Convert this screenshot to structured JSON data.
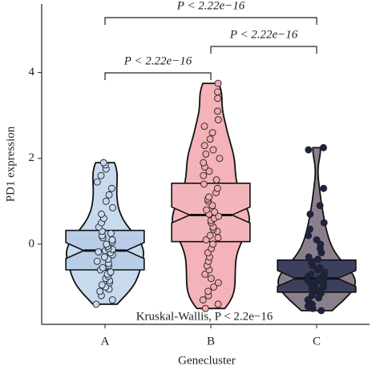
{
  "chart_data": {
    "type": "violin-box",
    "x_label": "Genecluster",
    "y_label": "PD1 expression",
    "ylim": [
      -1.87,
      5.6
    ],
    "yticks": [
      0,
      2,
      4
    ],
    "categories": [
      "A",
      "B",
      "C"
    ],
    "groups": [
      {
        "name": "A",
        "violin_color": "#c8daee",
        "box_color": "#b8cde8",
        "point_color": "#c4d8ee",
        "q1": -0.6,
        "median": -0.15,
        "q3": 0.32,
        "points": [
          -1.4,
          -1.3,
          -1.2,
          -1.1,
          -1.05,
          -1.0,
          -0.95,
          -0.9,
          -0.85,
          -0.8,
          -0.75,
          -0.7,
          -0.65,
          -0.6,
          -0.55,
          -0.5,
          -0.45,
          -0.4,
          -0.35,
          -0.3,
          -0.25,
          -0.2,
          -0.18,
          -0.15,
          -0.12,
          -0.1,
          -0.05,
          0.0,
          0.05,
          0.1,
          0.15,
          0.2,
          0.25,
          0.3,
          0.4,
          0.5,
          0.6,
          0.7,
          0.85,
          1.0,
          1.15,
          1.3,
          1.45,
          1.6,
          1.75,
          1.85,
          1.9
        ]
      },
      {
        "name": "B",
        "violin_color": "#f4b3b8",
        "box_color": "#f2b6ba",
        "point_color": "#f2a9ae",
        "q1": 0.06,
        "median": 0.68,
        "q3": 1.42,
        "points": [
          -1.5,
          -1.4,
          -1.3,
          -1.2,
          -1.1,
          -1.0,
          -0.9,
          -0.8,
          -0.7,
          -0.6,
          -0.5,
          -0.4,
          -0.3,
          -0.2,
          -0.1,
          0.0,
          0.1,
          0.15,
          0.2,
          0.3,
          0.35,
          0.4,
          0.5,
          0.55,
          0.6,
          0.65,
          0.7,
          0.75,
          0.8,
          0.9,
          1.0,
          1.05,
          1.1,
          1.2,
          1.3,
          1.4,
          1.5,
          1.6,
          1.7,
          1.8,
          1.9,
          2.0,
          2.1,
          2.2,
          2.3,
          2.45,
          2.6,
          2.75,
          2.9,
          3.1,
          3.4,
          3.55,
          3.75
        ]
      },
      {
        "name": "C",
        "violin_color": "#8b7f8e",
        "box_color": "#3c405e",
        "point_color": "#1b2442",
        "q1": -1.12,
        "median": -0.8,
        "q3": -0.37,
        "points": [
          -1.55,
          -1.5,
          -1.45,
          -1.4,
          -1.35,
          -1.3,
          -1.25,
          -1.2,
          -1.15,
          -1.1,
          -1.08,
          -1.05,
          -1.0,
          -0.98,
          -0.95,
          -0.92,
          -0.9,
          -0.88,
          -0.85,
          -0.82,
          -0.8,
          -0.78,
          -0.75,
          -0.72,
          -0.7,
          -0.65,
          -0.6,
          -0.55,
          -0.5,
          -0.45,
          -0.4,
          -0.35,
          -0.3,
          -0.2,
          -0.1,
          0.0,
          0.1,
          0.2,
          0.35,
          0.5,
          0.7,
          0.9,
          1.3,
          2.2,
          2.25
        ]
      }
    ],
    "comparisons": [
      {
        "groups": [
          "A",
          "B"
        ],
        "label": "P < 2.22e−16"
      },
      {
        "groups": [
          "B",
          "C"
        ],
        "label": "P < 2.22e−16"
      },
      {
        "groups": [
          "A",
          "C"
        ],
        "label": "P < 2.22e−16"
      }
    ],
    "test_label": "Kruskal-Wallis, P < 2.2e−16"
  }
}
